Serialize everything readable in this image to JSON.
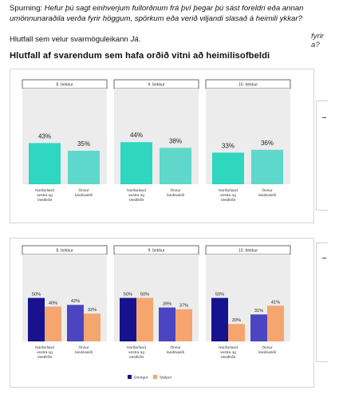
{
  "question": {
    "label": "Spurning:",
    "text": "Hefur þú sagt einhverjum fullorðnum frá því þegar þú sást foreldri eða annan umönnunaraðila verða fyrir höggum, spörkum eða verið viljandi slasað á heimili ykkar?"
  },
  "cutoff_text": [
    "fyrir",
    "a?"
  ],
  "share_line": {
    "prefix": "Hlutfall sem velur svarmöguleikann",
    "answer": "Já."
  },
  "heading": "Hlutfall af svarendum sem hafa orðið vitni að heimilisofbeldi",
  "colors": {
    "teal_dark": "#2fd6c0",
    "teal_light": "#5ed8cb",
    "navy": "#17138f",
    "slate_blue": "#4b45c2",
    "orange": "#f5a56e",
    "panel_bg": "#ececec",
    "strip_bg": "#ffffff"
  },
  "chart_data": [
    {
      "type": "bar",
      "ylim": [
        0,
        100
      ],
      "facets": [
        "8. bekkur",
        "9. bekkur",
        "10. bekkur"
      ],
      "categories": [
        "Norðurland vestra og Vestfirðir",
        "Önnur landsvæði"
      ],
      "category_lines": [
        [
          "Norðurland",
          "vestra og",
          "Vestfirðir"
        ],
        [
          "Önnur",
          "landsvæði"
        ]
      ],
      "series": [
        {
          "values": [
            [
              43,
              35
            ],
            [
              44,
              38
            ],
            [
              33,
              36
            ]
          ]
        }
      ],
      "labels": [
        [
          "43%",
          "35%"
        ],
        [
          "44%",
          "38%"
        ],
        [
          "33%",
          "36%"
        ]
      ]
    },
    {
      "type": "bar",
      "ylim": [
        0,
        100
      ],
      "facets": [
        "8. bekkur",
        "9. bekkur",
        "10. bekkur"
      ],
      "categories": [
        "Norðurland vestra og Vestfirðir",
        "Önnur landsvæði"
      ],
      "category_lines": [
        [
          "Norðurland",
          "vestra og",
          "Vestfirðir"
        ],
        [
          "Önnur",
          "landsvæði"
        ]
      ],
      "series": [
        {
          "name": "Drengur",
          "values": [
            [
              50,
              42
            ],
            [
              50,
              39
            ],
            [
              50,
              31
            ]
          ]
        },
        {
          "name": "Stelpur",
          "values": [
            [
              40,
              32
            ],
            [
              50,
              37
            ],
            [
              20,
              41
            ]
          ]
        }
      ],
      "labels": [
        [
          [
            "50%",
            "40%"
          ],
          [
            "42%",
            "32%"
          ]
        ],
        [
          [
            "50%",
            "50%"
          ],
          [
            "39%",
            "37%"
          ]
        ],
        [
          [
            "50%",
            "20%"
          ],
          [
            "31%",
            "41%"
          ]
        ]
      ],
      "legend": {
        "position": "bottom",
        "items": [
          "Drengur",
          "Stelpur"
        ]
      }
    }
  ]
}
